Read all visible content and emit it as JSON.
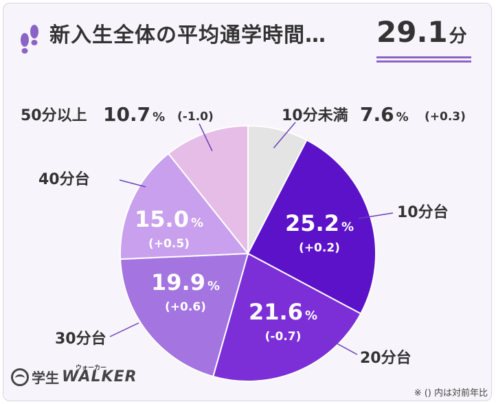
{
  "header": {
    "title": "新入生全体の平均通学時間…",
    "average_value": "29.1",
    "average_unit": "分"
  },
  "footnote": "※ () 内は対前年比",
  "logo": {
    "gaku": "学生",
    "walker": "WALKER",
    "kana": "ウォーカー"
  },
  "colors": {
    "accent": "#5b12c9",
    "slices": [
      "#e4e4e4",
      "#5b12c9",
      "#7c2fd6",
      "#a474e0",
      "#c8a0ee",
      "#e6bde6"
    ]
  },
  "chart_data": {
    "type": "pie",
    "title": "新入生全体の平均通学時間…29.1分",
    "categories": [
      "10分未満",
      "10分台",
      "20分台",
      "30分台",
      "40分台",
      "50分以上"
    ],
    "values": [
      7.6,
      25.2,
      21.6,
      19.9,
      15.0,
      10.7
    ],
    "value_labels": [
      "7.6",
      "25.2",
      "21.6",
      "19.9",
      "15.0",
      "10.7"
    ],
    "percent_symbol": "%",
    "changes": [
      "(+0.3)",
      "(+0.2)",
      "(-0.7)",
      "(+0.6)",
      "(+0.5)",
      "(-1.0)"
    ],
    "start_angle_deg": 0,
    "direction": "clockwise"
  }
}
